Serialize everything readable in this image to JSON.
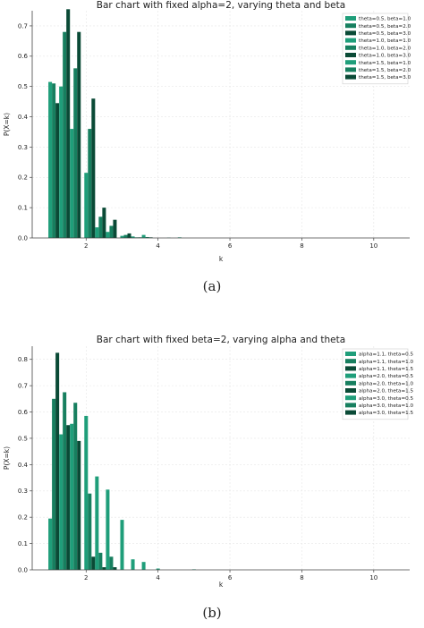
{
  "chart_data": [
    {
      "type": "bar",
      "title": "Bar chart with fixed alpha=2, varying theta and beta",
      "xlabel": "k",
      "ylabel": "P(X=k)",
      "xlim": [
        0.5,
        11.0
      ],
      "ylim": [
        0,
        0.75
      ],
      "xticks": [
        2,
        4,
        6,
        8,
        10
      ],
      "yticks": [
        0.0,
        0.1,
        0.2,
        0.3,
        0.4,
        0.5,
        0.6,
        0.7
      ],
      "legend_position": "top-right",
      "bar_width": 0.1,
      "grid": true,
      "series": [
        {
          "name": "theta=0.5, beta=1.0",
          "color": "#1f9e7a",
          "x": [
            1.0,
            2.0,
            3.0
          ],
          "values": [
            0.515,
            0.215,
            0.007
          ]
        },
        {
          "name": "theta=0.5, beta=2.0",
          "color": "#177f5f",
          "x": [
            1.1,
            2.1,
            3.1
          ],
          "values": [
            0.51,
            0.36,
            0.01
          ]
        },
        {
          "name": "theta=0.5, beta=3.0",
          "color": "#0a4a36",
          "x": [
            1.2,
            2.2,
            3.2
          ],
          "values": [
            0.445,
            0.46,
            0.015
          ]
        },
        {
          "name": "theta=1.0, beta=1.0",
          "color": "#1f9e7a",
          "x": [
            1.3,
            2.3,
            3.3,
            4.3
          ],
          "values": [
            0.5,
            0.035,
            0.005,
            0.001
          ]
        },
        {
          "name": "theta=1.0, beta=2.0",
          "color": "#177f5f",
          "x": [
            1.4,
            2.4,
            3.4
          ],
          "values": [
            0.68,
            0.07,
            0.002
          ]
        },
        {
          "name": "theta=1.0, beta=3.0",
          "color": "#0a4a36",
          "x": [
            1.5,
            2.5,
            3.5
          ],
          "values": [
            0.755,
            0.1,
            0.002
          ]
        },
        {
          "name": "theta=1.5, beta=1.0",
          "color": "#1f9e7a",
          "x": [
            1.6,
            2.6,
            3.6,
            4.6
          ],
          "values": [
            0.36,
            0.02,
            0.01,
            0.002
          ]
        },
        {
          "name": "theta=1.5, beta=2.0",
          "color": "#177f5f",
          "x": [
            1.7,
            2.7,
            3.7
          ],
          "values": [
            0.56,
            0.04,
            0.003
          ]
        },
        {
          "name": "theta=1.5, beta=3.0",
          "color": "#0a4a36",
          "x": [
            1.8,
            2.8,
            3.8
          ],
          "values": [
            0.68,
            0.06,
            0.002
          ]
        }
      ]
    },
    {
      "type": "bar",
      "title": "Bar chart with fixed beta=2, varying alpha and theta",
      "xlabel": "k",
      "ylabel": "P(X=k)",
      "xlim": [
        0.5,
        11.0
      ],
      "ylim": [
        0,
        0.85
      ],
      "xticks": [
        2,
        4,
        6,
        8,
        10
      ],
      "yticks": [
        0.0,
        0.1,
        0.2,
        0.3,
        0.4,
        0.5,
        0.6,
        0.7,
        0.8
      ],
      "legend_position": "top-right",
      "bar_width": 0.1,
      "grid": true,
      "series": [
        {
          "name": "alpha=1.1, theta=0.5",
          "color": "#1f9e7a",
          "x": [
            1.0,
            2.0,
            3.0,
            4.0,
            5.0
          ],
          "values": [
            0.195,
            0.585,
            0.19,
            0.005,
            0.002
          ]
        },
        {
          "name": "alpha=1.1, theta=1.0",
          "color": "#177f5f",
          "x": [
            1.1,
            2.1
          ],
          "values": [
            0.65,
            0.29
          ]
        },
        {
          "name": "alpha=1.1, theta=1.5",
          "color": "#0a4a36",
          "x": [
            1.2,
            2.2
          ],
          "values": [
            0.825,
            0.05
          ]
        },
        {
          "name": "alpha=2.0, theta=0.5",
          "color": "#1f9e7a",
          "x": [
            1.3,
            2.3,
            3.3
          ],
          "values": [
            0.515,
            0.355,
            0.04
          ]
        },
        {
          "name": "alpha=2.0, theta=1.0",
          "color": "#177f5f",
          "x": [
            1.4,
            2.4
          ],
          "values": [
            0.675,
            0.065
          ]
        },
        {
          "name": "alpha=2.0, theta=1.5",
          "color": "#0a4a36",
          "x": [
            1.5,
            2.5
          ],
          "values": [
            0.55,
            0.01
          ]
        },
        {
          "name": "alpha=3.0, theta=0.5",
          "color": "#1f9e7a",
          "x": [
            1.6,
            2.6,
            3.6
          ],
          "values": [
            0.555,
            0.305,
            0.03
          ]
        },
        {
          "name": "alpha=3.0, theta=1.0",
          "color": "#177f5f",
          "x": [
            1.7,
            2.7
          ],
          "values": [
            0.635,
            0.05
          ]
        },
        {
          "name": "alpha=3.0, theta=1.5",
          "color": "#0a4a36",
          "x": [
            1.8,
            2.8
          ],
          "values": [
            0.49,
            0.01
          ]
        }
      ]
    }
  ],
  "captions": [
    "(a)",
    "(b)"
  ]
}
